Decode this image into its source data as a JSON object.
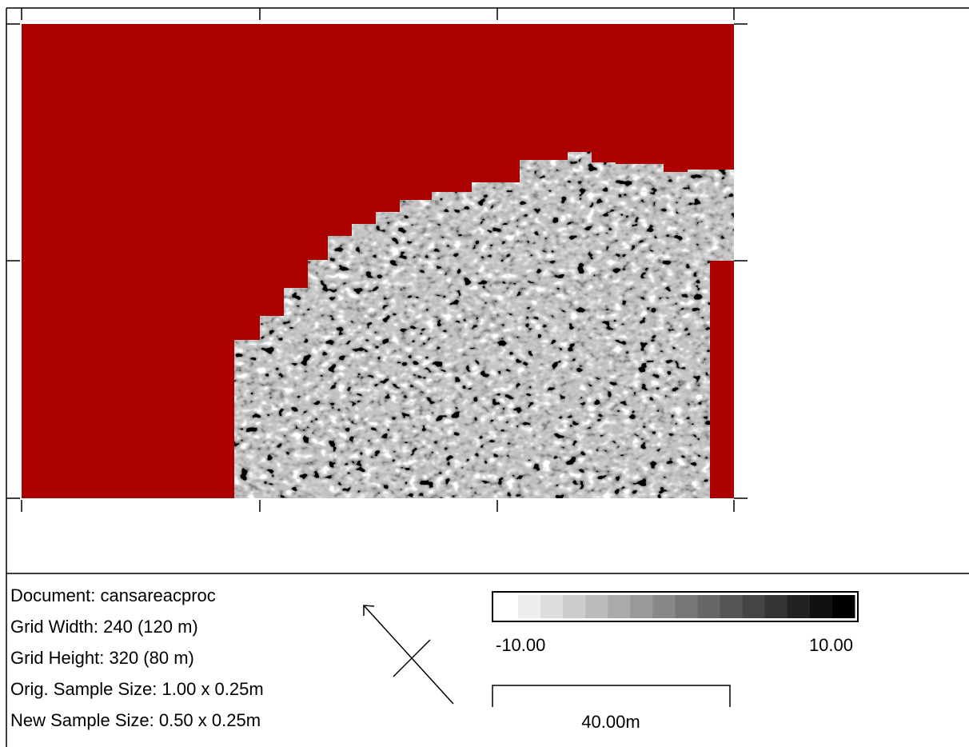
{
  "info": {
    "document": "Document: cansareacproc",
    "grid_width": "Grid Width: 240 (120 m)",
    "grid_height": "Grid Height: 320 (80 m)",
    "orig_sample_size": "Orig. Sample Size: 1.00 x 0.25m",
    "new_sample_size": "New Sample Size: 0.50 x 0.25m"
  },
  "legend": {
    "min_label": "-10.00",
    "max_label": "10.00"
  },
  "scale": {
    "label": "40.00m"
  }
}
